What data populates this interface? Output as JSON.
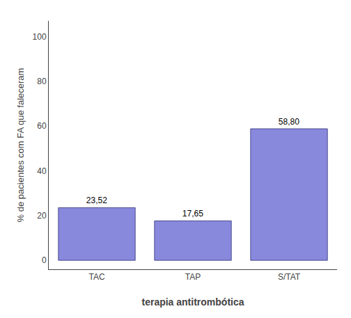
{
  "chart_data": {
    "type": "bar",
    "categories": [
      "TAC",
      "TAP",
      "S/TAT"
    ],
    "values": [
      23.52,
      17.65,
      58.8
    ],
    "value_labels": [
      "23,52",
      "17,65",
      "58,80"
    ],
    "data_labels": true,
    "color": "#8888dd",
    "xlabel": "terapia antitrombótica",
    "ylabel": "% de pacientes com FA que faleceram",
    "ylim": [
      -4,
      107
    ],
    "yticks": [
      0,
      20,
      40,
      60,
      80,
      100
    ],
    "grid": false
  }
}
